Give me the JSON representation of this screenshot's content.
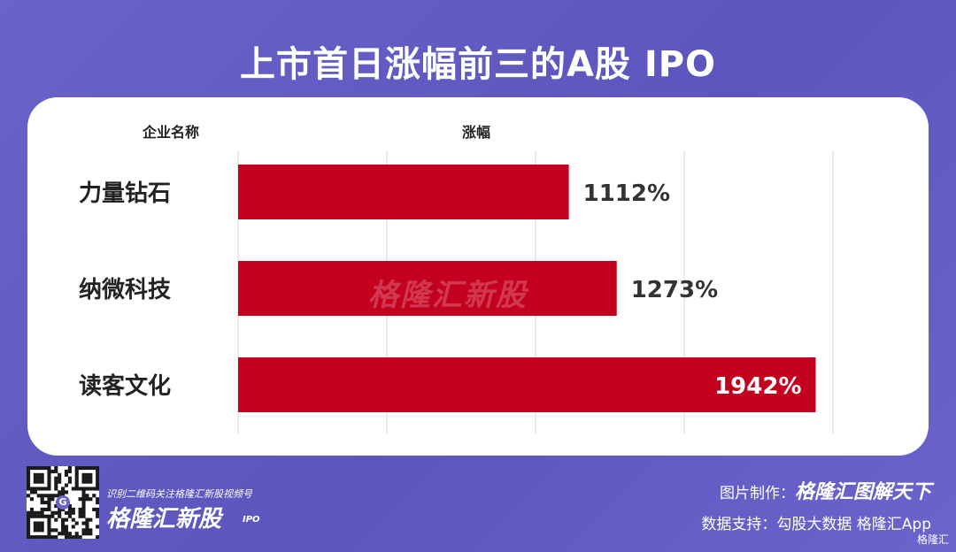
{
  "title": "上市首日涨幅前三的A股 IPO",
  "headers": {
    "name": "企业名称",
    "gain": "涨幅"
  },
  "watermark": "格隆汇新股",
  "chart_data": {
    "type": "bar",
    "orientation": "horizontal",
    "categories": [
      "力量钻石",
      "纳微科技",
      "读客文化"
    ],
    "values": [
      1112,
      1273,
      1942
    ],
    "value_labels": [
      "1112%",
      "1273%",
      "1942%"
    ],
    "xlim": [
      0,
      2000
    ],
    "grid": true,
    "bar_color": "#c4001f"
  },
  "footer": {
    "scan_text": "识别二维码关注格隆汇新股视频号",
    "brand": "格隆汇新股",
    "brand_sub": "IPO",
    "qr_center": "G",
    "image_credit_label": "图片制作：",
    "image_credit_brand": "格隆汇图解天下",
    "data_credit": "数据支持：勾股大数据  格隆汇App",
    "logo": "格隆汇"
  }
}
